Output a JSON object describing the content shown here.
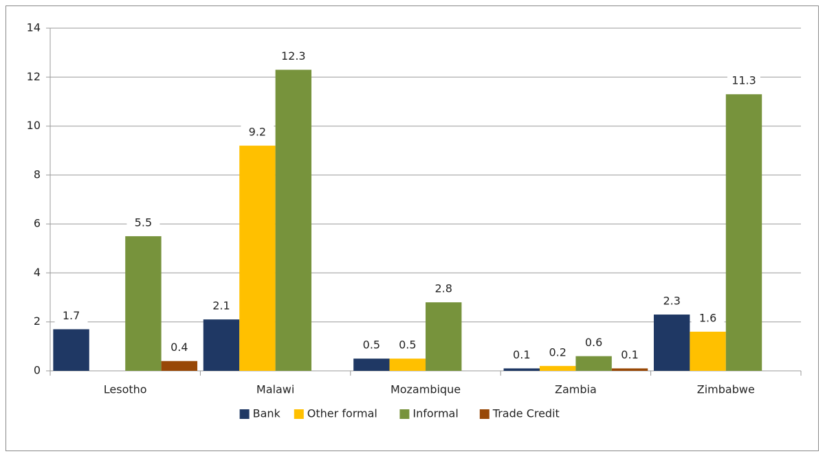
{
  "chart_data": {
    "type": "bar",
    "categories": [
      "Lesotho",
      "Malawi",
      "Mozambique",
      "Zambia",
      "Zimbabwe"
    ],
    "series": [
      {
        "name": "Bank",
        "color": "#1f3864",
        "values": [
          1.7,
          2.1,
          0.5,
          0.1,
          2.3
        ]
      },
      {
        "name": "Other formal",
        "color": "#ffc000",
        "values": [
          null,
          9.2,
          0.5,
          0.2,
          1.6
        ]
      },
      {
        "name": "Informal",
        "color": "#77933c",
        "values": [
          5.5,
          12.3,
          2.8,
          0.6,
          11.3
        ]
      },
      {
        "name": "Trade Credit",
        "color": "#984807",
        "values": [
          0.4,
          null,
          null,
          0.1,
          null
        ]
      }
    ],
    "ylim": [
      0,
      14
    ],
    "yticks": [
      0,
      2,
      4,
      6,
      8,
      10,
      12,
      14
    ],
    "grid": true,
    "legend": "bottom"
  }
}
